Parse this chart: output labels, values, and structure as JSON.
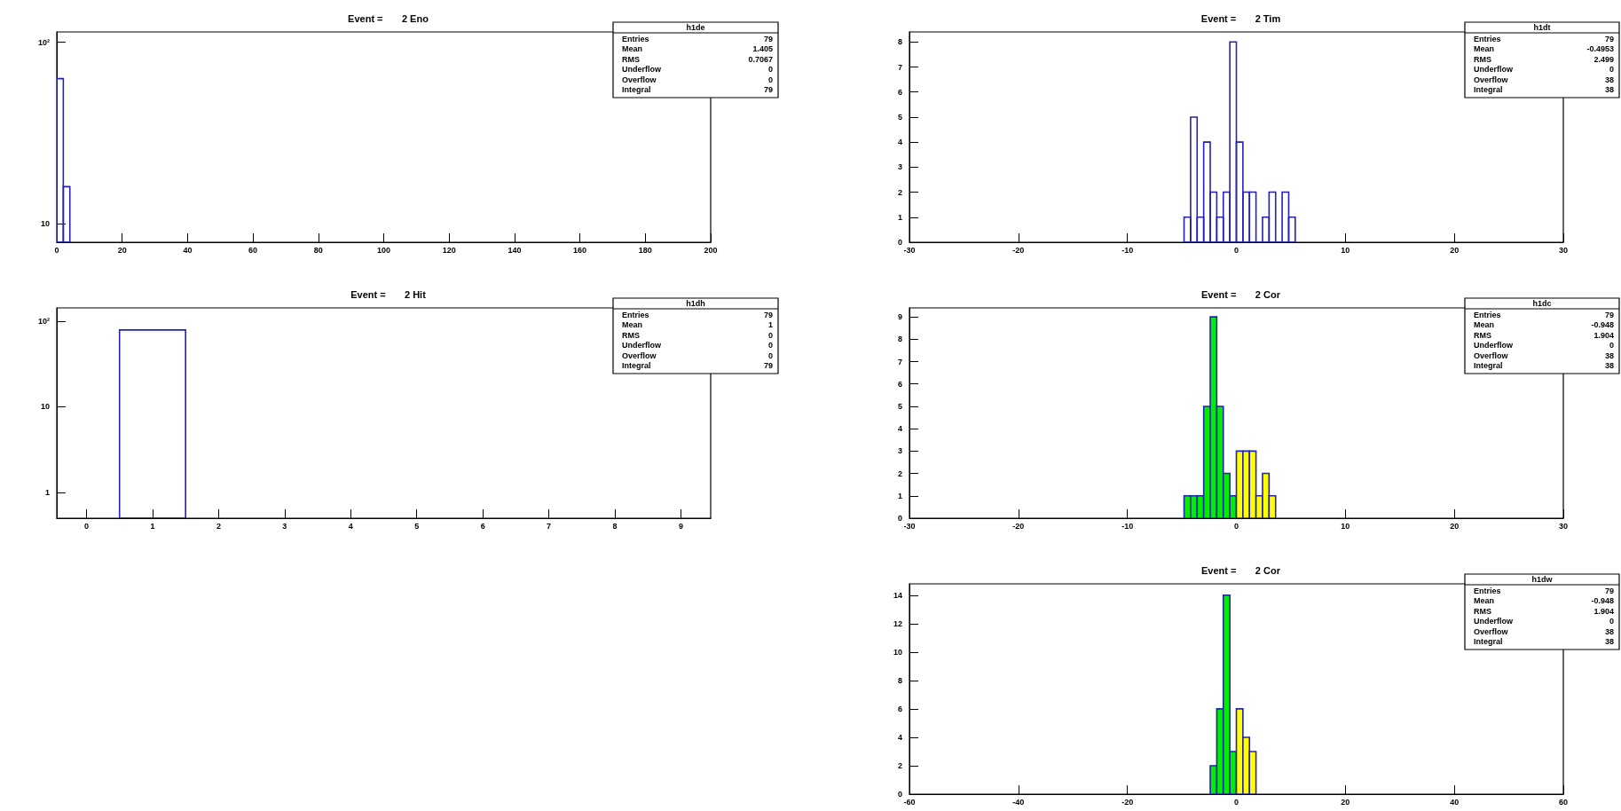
{
  "chart_data": [
    {
      "type": "histogram",
      "title": "Event =       2 Eno",
      "bins": [
        0,
        2,
        4
      ],
      "values": [
        63,
        16
      ],
      "color": "#2323b0",
      "xlim": [
        0,
        200
      ],
      "xticks": [
        0,
        20,
        40,
        60,
        80,
        100,
        120,
        140,
        160,
        180,
        200
      ],
      "ylim": [
        7.9,
        114
      ],
      "yticks": [
        10,
        {
          "value": 100,
          "label": "10²"
        }
      ],
      "log": "y",
      "grid": false,
      "annotations": [
        "h1de",
        "Entries 79",
        "Mean 1.405",
        "RMS 0.7067",
        "Underflow 0",
        "Overflow 0",
        "Integral 79"
      ]
    },
    {
      "type": "histogram",
      "title": "Event =       2 Tim",
      "bins": [
        -4.8,
        -4.2,
        -3.6,
        -3.0,
        -2.4,
        -1.8,
        -1.2,
        -0.6,
        0,
        0.6,
        1.2,
        1.8,
        2.4,
        3.0,
        3.6,
        4.2,
        4.8,
        5.4
      ],
      "values": [
        1,
        5,
        1,
        4,
        2,
        1,
        2,
        8,
        4,
        2,
        2,
        0,
        1,
        2,
        0,
        2,
        1
      ],
      "color": "#2323b0",
      "xlim": [
        -30,
        30
      ],
      "xticks": [
        -30,
        -20,
        -10,
        0,
        10,
        20,
        30
      ],
      "ylim": [
        0,
        8.4
      ],
      "yticks": [
        0,
        1,
        2,
        3,
        4,
        5,
        6,
        7,
        8
      ],
      "grid": false,
      "annotations": [
        "h1dt",
        "Entries 79",
        "Mean -0.4953",
        "RMS 2.499",
        "Underflow 0",
        "Overflow 38",
        "Integral 38"
      ]
    },
    {
      "type": "histogram",
      "title": "Event =       2 Hit",
      "bins": [
        0.5,
        1.5
      ],
      "values": [
        79
      ],
      "color": "#2323b0",
      "xlim": [
        -0.45,
        9.45
      ],
      "xticks": [
        0,
        1,
        2,
        3,
        4,
        5,
        6,
        7,
        8,
        9
      ],
      "ylim": [
        0.5,
        143
      ],
      "yticks": [
        1,
        10,
        {
          "value": 100,
          "label": "10²"
        }
      ],
      "log": "y",
      "grid": false,
      "annotations": [
        "h1dh",
        "Entries 79",
        "Mean 1",
        "RMS 0",
        "Underflow 0",
        "Overflow 0",
        "Integral 79"
      ]
    },
    {
      "type": "histogram",
      "title": "Event =       2 Cor",
      "bins": [
        -4.8,
        -4.2,
        -3.6,
        -3.0,
        -2.4,
        -1.8,
        -1.2,
        -0.6,
        0,
        0.6,
        1.2,
        1.8,
        2.4,
        3.0,
        3.6
      ],
      "color": "#2323b0",
      "series": [
        {
          "color": "#00ee00",
          "values": [
            1,
            1,
            1,
            5,
            9,
            5,
            2,
            1,
            null,
            null,
            null,
            null,
            null,
            null
          ]
        },
        {
          "color": "#ffff00",
          "values": [
            null,
            null,
            null,
            null,
            null,
            null,
            null,
            null,
            3,
            3,
            3,
            1,
            2,
            1
          ]
        }
      ],
      "xlim": [
        -30,
        30
      ],
      "xticks": [
        -30,
        -20,
        -10,
        0,
        10,
        20,
        30
      ],
      "ylim": [
        0,
        9.4
      ],
      "yticks": [
        0,
        1,
        2,
        3,
        4,
        5,
        6,
        7,
        8,
        9
      ],
      "grid": false,
      "annotations": [
        "h1dc",
        "Entries 79",
        "Mean -0.948",
        "RMS 1.904",
        "Underflow 0",
        "Overflow 38",
        "Integral 38"
      ]
    },
    {
      "type": "histogram",
      "title": "Event =       2 Cor",
      "bins": [
        -4.8,
        -3.6,
        -2.4,
        -1.2,
        0,
        1.2,
        2.4,
        3.6
      ],
      "color": "#2323b0",
      "series": [
        {
          "color": "#00ee00",
          "values": [
            2,
            6,
            14,
            3,
            null,
            null,
            null
          ]
        },
        {
          "color": "#ffff00",
          "values": [
            null,
            null,
            null,
            null,
            6,
            4,
            3
          ]
        }
      ],
      "xlim": [
        -60,
        60
      ],
      "xticks": [
        -60,
        -40,
        -20,
        0,
        20,
        40,
        60
      ],
      "ylim": [
        0,
        14.8
      ],
      "yticks": [
        0,
        2,
        4,
        6,
        8,
        10,
        12,
        14
      ],
      "grid": false,
      "annotations": [
        "h1dw",
        "Entries 79",
        "Mean -0.948",
        "RMS 1.904",
        "Underflow 0",
        "Overflow 38",
        "Integral 38"
      ]
    }
  ]
}
